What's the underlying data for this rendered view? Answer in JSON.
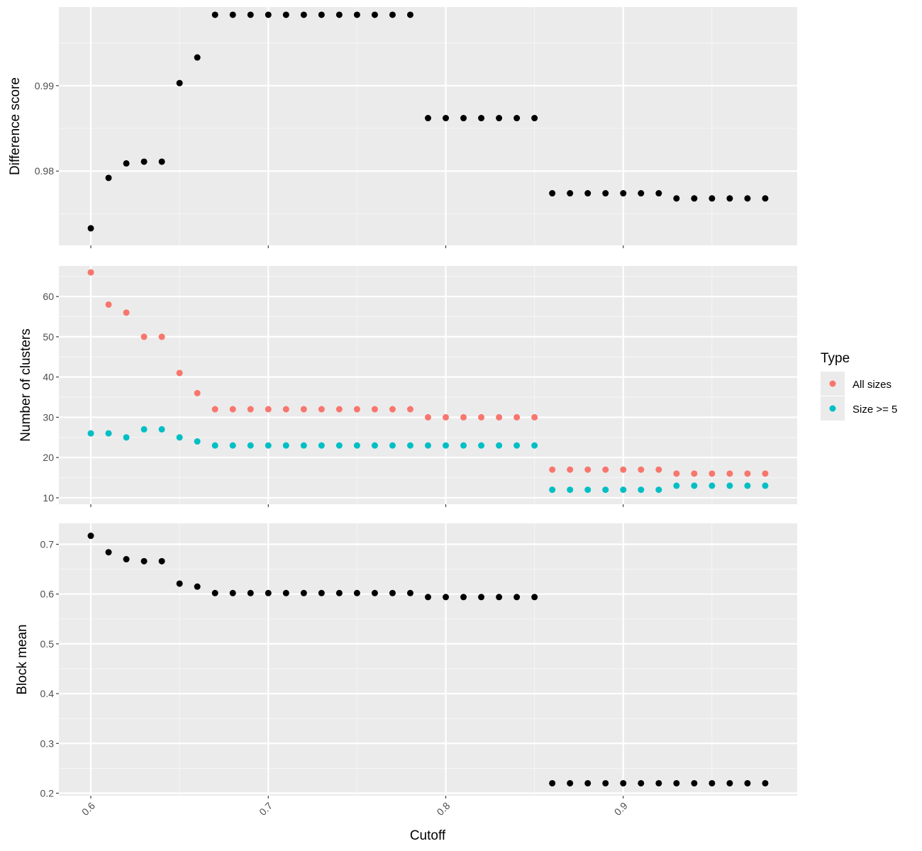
{
  "chart_data": {
    "type": "scatter",
    "x": [
      0.6,
      0.61,
      0.62,
      0.63,
      0.64,
      0.65,
      0.66,
      0.67,
      0.68,
      0.69,
      0.7,
      0.71,
      0.72,
      0.73,
      0.74,
      0.75,
      0.76,
      0.77,
      0.78,
      0.79,
      0.8,
      0.81,
      0.82,
      0.83,
      0.84,
      0.85,
      0.86,
      0.87,
      0.88,
      0.89,
      0.9,
      0.91,
      0.92,
      0.93,
      0.94,
      0.95,
      0.96,
      0.97,
      0.98
    ],
    "xlabel": "Cutoff",
    "x_ticks": [
      "0.6",
      "0.7",
      "0.8",
      "0.9"
    ],
    "xlim": [
      0.582,
      0.998
    ],
    "facets": [
      {
        "ylabel": "Difference score",
        "ylim": [
          0.9713,
          0.9992
        ],
        "y_ticks": [
          "0.98",
          "0.99"
        ],
        "series": [
          {
            "color": "#000000",
            "values": [
              0.9733,
              0.9792,
              0.9809,
              0.9811,
              0.9811,
              0.9903,
              0.9933,
              0.9983,
              0.9983,
              0.9983,
              0.9983,
              0.9983,
              0.9983,
              0.9983,
              0.9983,
              0.9983,
              0.9983,
              0.9983,
              0.9983,
              0.9862,
              0.9862,
              0.9862,
              0.9862,
              0.9862,
              0.9862,
              0.9862,
              0.9774,
              0.9774,
              0.9774,
              0.9774,
              0.9774,
              0.9774,
              0.9774,
              0.9768,
              0.9768,
              0.9768,
              0.9768,
              0.9768,
              0.9768
            ]
          }
        ]
      },
      {
        "ylabel": "Number of clusters",
        "ylim": [
          8.4,
          67.6
        ],
        "y_ticks": [
          "10",
          "20",
          "30",
          "40",
          "50",
          "60"
        ],
        "series": [
          {
            "name": "All sizes",
            "color": "#F8766D",
            "values": [
              66,
              58,
              56,
              50,
              50,
              41,
              36,
              32,
              32,
              32,
              32,
              32,
              32,
              32,
              32,
              32,
              32,
              32,
              32,
              30,
              30,
              30,
              30,
              30,
              30,
              30,
              17,
              17,
              17,
              17,
              17,
              17,
              17,
              16,
              16,
              16,
              16,
              16,
              16
            ]
          },
          {
            "name": "Size >= 5",
            "color": "#00BFC4",
            "values": [
              26,
              26,
              25,
              27,
              27,
              25,
              24,
              23,
              23,
              23,
              23,
              23,
              23,
              23,
              23,
              23,
              23,
              23,
              23,
              23,
              23,
              23,
              23,
              23,
              23,
              23,
              12,
              12,
              12,
              12,
              12,
              12,
              12,
              13,
              13,
              13,
              13,
              13,
              13
            ]
          }
        ]
      },
      {
        "ylabel": "Block mean",
        "ylim": [
          0.195,
          0.742
        ],
        "y_ticks": [
          "0.2",
          "0.3",
          "0.4",
          "0.5",
          "0.6",
          "0.7"
        ],
        "series": [
          {
            "color": "#000000",
            "values": [
              0.717,
              0.684,
              0.67,
              0.666,
              0.666,
              0.621,
              0.615,
              0.602,
              0.602,
              0.602,
              0.602,
              0.602,
              0.602,
              0.602,
              0.602,
              0.602,
              0.602,
              0.602,
              0.602,
              0.594,
              0.594,
              0.594,
              0.594,
              0.594,
              0.594,
              0.594,
              0.22,
              0.22,
              0.22,
              0.22,
              0.22,
              0.22,
              0.22,
              0.22,
              0.22,
              0.22,
              0.22,
              0.22,
              0.22
            ]
          }
        ]
      }
    ],
    "legend": {
      "title": "Type",
      "position": "right",
      "entries": [
        {
          "label": "All sizes",
          "color": "#F8766D"
        },
        {
          "label": "Size >= 5",
          "color": "#00BFC4"
        }
      ]
    },
    "panel_background": "#EBEBEB",
    "grid": true
  }
}
